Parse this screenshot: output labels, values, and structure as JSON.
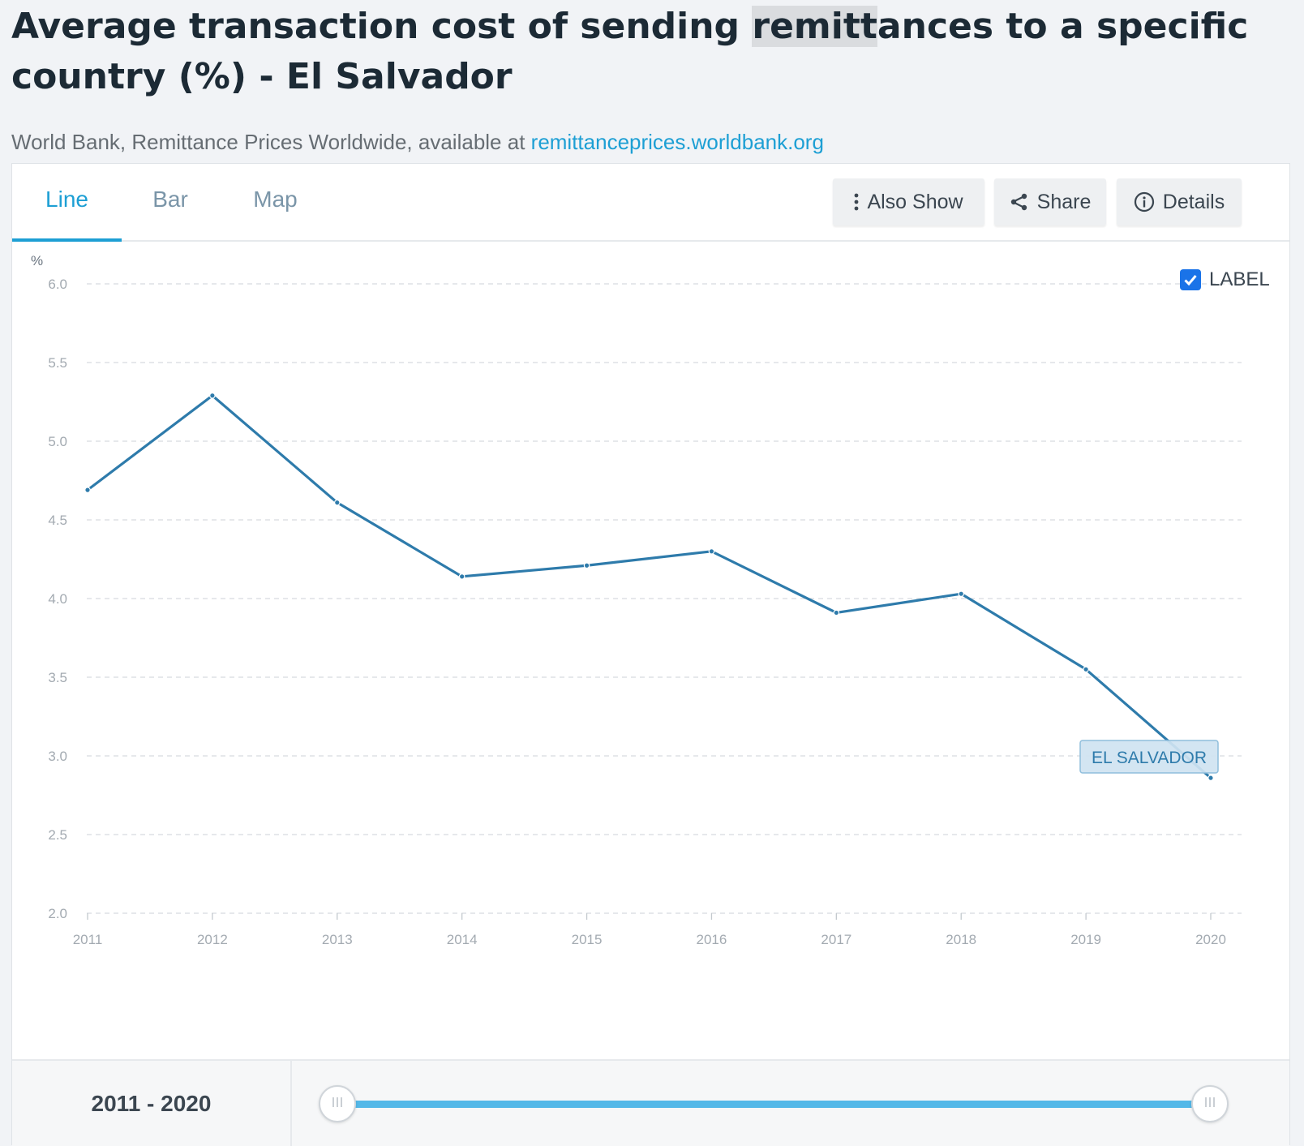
{
  "header": {
    "title_part1": "Average transaction cost of sending ",
    "title_highlight": "remitt",
    "title_part2": "ances to a specific country (%) - El Salvador",
    "source_text": "World Bank, Remittance Prices Worldwide, available at ",
    "source_link": "remittanceprices.worldbank.org"
  },
  "tabs": [
    {
      "label": "Line",
      "active": true
    },
    {
      "label": "Bar",
      "active": false
    },
    {
      "label": "Map",
      "active": false
    }
  ],
  "toolbar": {
    "also_show_label": "Also Show",
    "also_show_icon": "vertical-dots-icon",
    "share_label": "Share",
    "share_icon": "share-icon",
    "details_label": "Details",
    "details_icon": "info-icon"
  },
  "label_toggle": {
    "label": "LABEL",
    "checked": true,
    "color": "#1a73e8"
  },
  "chart_data": {
    "type": "line",
    "title": "Average transaction cost of sending remittances to a specific country (%) - El Salvador",
    "ylabel": "%",
    "xlabel": "",
    "x": [
      "2011",
      "2012",
      "2013",
      "2014",
      "2015",
      "2016",
      "2017",
      "2018",
      "2019",
      "2020"
    ],
    "series": [
      {
        "name": "EL SALVADOR",
        "values": [
          4.69,
          5.29,
          4.61,
          4.14,
          4.21,
          4.3,
          3.91,
          4.03,
          3.55,
          2.86
        ],
        "color": "#2e7bab"
      }
    ],
    "ylim": [
      2.0,
      6.0
    ],
    "yticks": [
      "2.0",
      "2.5",
      "3.0",
      "3.5",
      "4.0",
      "4.5",
      "5.0",
      "5.5",
      "6.0"
    ],
    "grid": true,
    "series_label": "EL SALVADOR"
  },
  "footer": {
    "range_start": "2011",
    "range_end": "2020",
    "range_label": "2011 - 2020"
  },
  "colors": {
    "accent": "#1d9fd4",
    "line": "#2e7bab",
    "slider": "#53b8e8"
  }
}
